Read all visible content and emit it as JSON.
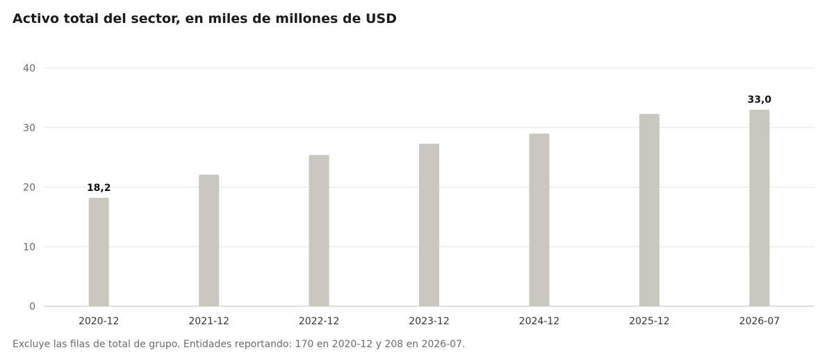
{
  "title": "Activo total del sector, en miles de millones de USD",
  "footnote": "Excluye las filas de total de grupo. Entidades reportando: 170 en 2020-12 y 208 en 2026-07.",
  "colors": {
    "bar": "#c9c7be"
  },
  "chart_data": {
    "type": "bar",
    "categories": [
      "2020-12",
      "2021-12",
      "2022-12",
      "2023-12",
      "2024-12",
      "2025-12",
      "2026-07"
    ],
    "values": [
      18.2,
      22.1,
      25.4,
      27.3,
      29.0,
      32.3,
      33.0
    ],
    "data_labels": [
      "18,2",
      "",
      "",
      "",
      "",
      "",
      "33,0"
    ],
    "yticks": [
      0,
      10,
      20,
      30,
      40
    ],
    "ylim": [
      0,
      40
    ],
    "xlabel": "",
    "ylabel": "",
    "grid": true,
    "legend": "none"
  }
}
